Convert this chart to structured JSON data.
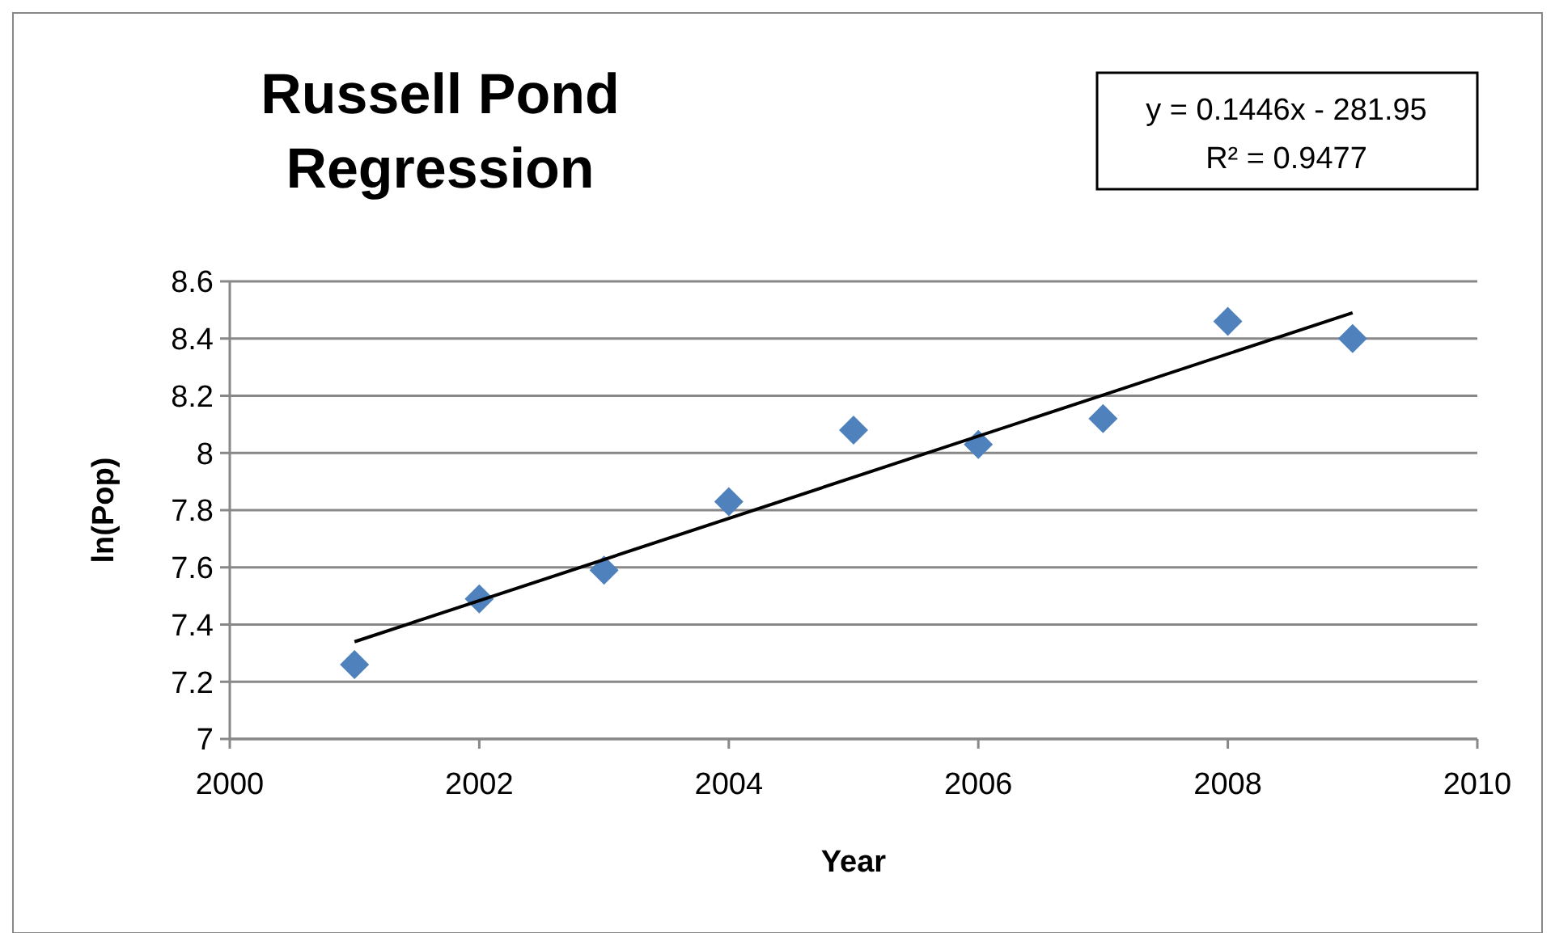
{
  "chart_data": {
    "type": "scatter",
    "title": "Russell Pond Regression",
    "xlabel": "Year",
    "ylabel": "ln(Pop)",
    "xlim": [
      2000,
      2010
    ],
    "xticks": [
      2000,
      2002,
      2004,
      2006,
      2008,
      2010
    ],
    "ylim": [
      7,
      8.6
    ],
    "yticks": [
      7,
      7.2,
      7.4,
      7.6,
      7.8,
      8,
      8.2,
      8.4,
      8.6
    ],
    "grid": "y",
    "marker": "diamond",
    "annotations": [
      "y = 0.1446x - 281.95\nR² = 0.9477"
    ],
    "series": [
      {
        "color": "#4f81bd",
        "x": [
          2001,
          2002,
          2003,
          2004,
          2005,
          2006,
          2007,
          2008,
          2009
        ],
        "values": [
          7.26,
          7.49,
          7.59,
          7.83,
          8.08,
          8.03,
          8.12,
          8.46,
          8.4
        ]
      },
      {
        "type": "line",
        "color": "#000000",
        "marker": "none",
        "line_style": "solid",
        "x": [
          2001,
          2009
        ],
        "values": [
          7.34,
          8.49
        ]
      }
    ]
  }
}
